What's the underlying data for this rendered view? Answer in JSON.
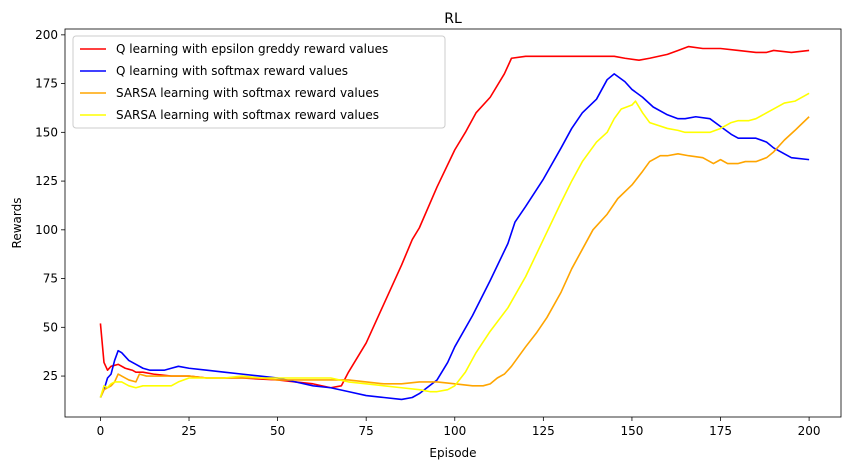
{
  "chart_data": {
    "type": "line",
    "title": "RL",
    "xlabel": "Episode",
    "ylabel": "Rewards",
    "xlim": [
      -10,
      209
    ],
    "ylim": [
      4,
      203
    ],
    "xticks": [
      0,
      25,
      50,
      75,
      100,
      125,
      150,
      175,
      200
    ],
    "yticks": [
      25,
      50,
      75,
      100,
      125,
      150,
      175,
      200
    ],
    "grid": false,
    "legend_position": "upper left",
    "series": [
      {
        "name": "Q learning with epsilon greddy reward values",
        "color": "#ff0000",
        "points": [
          [
            0,
            52
          ],
          [
            1,
            32
          ],
          [
            2,
            28
          ],
          [
            3,
            30
          ],
          [
            5,
            31
          ],
          [
            7,
            29
          ],
          [
            9,
            28
          ],
          [
            10,
            27
          ],
          [
            12,
            27
          ],
          [
            15,
            26
          ],
          [
            20,
            25
          ],
          [
            25,
            25
          ],
          [
            30,
            24
          ],
          [
            40,
            24
          ],
          [
            50,
            23
          ],
          [
            55,
            22
          ],
          [
            60,
            21
          ],
          [
            65,
            19
          ],
          [
            68,
            20
          ],
          [
            70,
            27
          ],
          [
            75,
            42
          ],
          [
            80,
            62
          ],
          [
            85,
            82
          ],
          [
            88,
            95
          ],
          [
            90,
            101
          ],
          [
            95,
            122
          ],
          [
            100,
            141
          ],
          [
            103,
            150
          ],
          [
            106,
            160
          ],
          [
            110,
            168
          ],
          [
            114,
            180
          ],
          [
            116,
            188
          ],
          [
            120,
            189
          ],
          [
            125,
            189
          ],
          [
            130,
            189
          ],
          [
            135,
            189
          ],
          [
            140,
            189
          ],
          [
            145,
            189
          ],
          [
            148,
            188
          ],
          [
            152,
            187
          ],
          [
            155,
            188
          ],
          [
            160,
            190
          ],
          [
            163,
            192
          ],
          [
            166,
            194
          ],
          [
            170,
            193
          ],
          [
            175,
            193
          ],
          [
            180,
            192
          ],
          [
            185,
            191
          ],
          [
            188,
            191
          ],
          [
            190,
            192
          ],
          [
            195,
            191
          ],
          [
            200,
            192
          ]
        ]
      },
      {
        "name": "Q learning with softmax reward values",
        "color": "#0000ff",
        "points": [
          [
            0,
            14
          ],
          [
            1,
            18
          ],
          [
            2,
            24
          ],
          [
            3,
            26
          ],
          [
            4,
            33
          ],
          [
            5,
            38
          ],
          [
            6,
            37
          ],
          [
            7,
            35
          ],
          [
            8,
            33
          ],
          [
            10,
            31
          ],
          [
            12,
            29
          ],
          [
            14,
            28
          ],
          [
            16,
            28
          ],
          [
            18,
            28
          ],
          [
            20,
            29
          ],
          [
            22,
            30
          ],
          [
            25,
            29
          ],
          [
            30,
            28
          ],
          [
            35,
            27
          ],
          [
            40,
            26
          ],
          [
            45,
            25
          ],
          [
            50,
            24
          ],
          [
            55,
            22
          ],
          [
            60,
            20
          ],
          [
            65,
            19
          ],
          [
            70,
            17
          ],
          [
            75,
            15
          ],
          [
            80,
            14
          ],
          [
            85,
            13
          ],
          [
            88,
            14
          ],
          [
            90,
            16
          ],
          [
            95,
            23
          ],
          [
            98,
            32
          ],
          [
            100,
            40
          ],
          [
            105,
            56
          ],
          [
            110,
            74
          ],
          [
            115,
            93
          ],
          [
            117,
            104
          ],
          [
            120,
            112
          ],
          [
            125,
            126
          ],
          [
            130,
            142
          ],
          [
            133,
            152
          ],
          [
            136,
            160
          ],
          [
            140,
            167
          ],
          [
            143,
            177
          ],
          [
            145,
            180
          ],
          [
            148,
            176
          ],
          [
            150,
            172
          ],
          [
            153,
            168
          ],
          [
            156,
            163
          ],
          [
            160,
            159
          ],
          [
            163,
            157
          ],
          [
            165,
            157
          ],
          [
            168,
            158
          ],
          [
            172,
            157
          ],
          [
            175,
            153
          ],
          [
            178,
            149
          ],
          [
            180,
            147
          ],
          [
            185,
            147
          ],
          [
            188,
            145
          ],
          [
            190,
            142
          ],
          [
            193,
            139
          ],
          [
            195,
            137
          ],
          [
            200,
            136
          ]
        ]
      },
      {
        "name": "SARSA learning with softmax reward values",
        "color": "#ffa500",
        "points": [
          [
            0,
            14
          ],
          [
            1,
            18
          ],
          [
            2,
            19
          ],
          [
            3,
            20
          ],
          [
            4,
            22
          ],
          [
            5,
            26
          ],
          [
            6,
            25
          ],
          [
            8,
            23
          ],
          [
            10,
            22
          ],
          [
            11,
            26
          ],
          [
            13,
            25
          ],
          [
            15,
            25
          ],
          [
            20,
            25
          ],
          [
            25,
            25
          ],
          [
            30,
            24
          ],
          [
            35,
            24
          ],
          [
            40,
            24
          ],
          [
            45,
            24
          ],
          [
            50,
            23
          ],
          [
            55,
            23
          ],
          [
            60,
            23
          ],
          [
            65,
            23
          ],
          [
            70,
            23
          ],
          [
            75,
            22
          ],
          [
            80,
            21
          ],
          [
            85,
            21
          ],
          [
            90,
            22
          ],
          [
            95,
            22
          ],
          [
            100,
            21
          ],
          [
            105,
            20
          ],
          [
            108,
            20
          ],
          [
            110,
            21
          ],
          [
            112,
            24
          ],
          [
            114,
            26
          ],
          [
            116,
            30
          ],
          [
            118,
            35
          ],
          [
            120,
            40
          ],
          [
            123,
            47
          ],
          [
            126,
            55
          ],
          [
            130,
            68
          ],
          [
            133,
            80
          ],
          [
            136,
            90
          ],
          [
            139,
            100
          ],
          [
            143,
            108
          ],
          [
            146,
            116
          ],
          [
            150,
            123
          ],
          [
            153,
            130
          ],
          [
            155,
            135
          ],
          [
            158,
            138
          ],
          [
            160,
            138
          ],
          [
            163,
            139
          ],
          [
            166,
            138
          ],
          [
            170,
            137
          ],
          [
            173,
            134
          ],
          [
            175,
            136
          ],
          [
            177,
            134
          ],
          [
            180,
            134
          ],
          [
            182,
            135
          ],
          [
            185,
            135
          ],
          [
            188,
            137
          ],
          [
            190,
            140
          ],
          [
            193,
            146
          ],
          [
            196,
            151
          ],
          [
            200,
            158
          ]
        ]
      },
      {
        "name": "SARSA learning with softmax reward values",
        "color": "#ffff00",
        "points": [
          [
            0,
            14
          ],
          [
            1,
            20
          ],
          [
            2,
            19
          ],
          [
            3,
            21
          ],
          [
            4,
            22
          ],
          [
            5,
            22
          ],
          [
            6,
            22
          ],
          [
            8,
            20
          ],
          [
            10,
            19
          ],
          [
            12,
            20
          ],
          [
            15,
            20
          ],
          [
            20,
            20
          ],
          [
            22,
            22
          ],
          [
            25,
            24
          ],
          [
            30,
            24
          ],
          [
            35,
            24
          ],
          [
            40,
            25
          ],
          [
            45,
            24
          ],
          [
            50,
            24
          ],
          [
            55,
            24
          ],
          [
            60,
            24
          ],
          [
            65,
            24
          ],
          [
            70,
            22
          ],
          [
            75,
            21
          ],
          [
            80,
            20
          ],
          [
            85,
            19
          ],
          [
            90,
            18
          ],
          [
            93,
            17
          ],
          [
            95,
            17
          ],
          [
            98,
            18
          ],
          [
            100,
            20
          ],
          [
            103,
            27
          ],
          [
            106,
            37
          ],
          [
            110,
            48
          ],
          [
            115,
            60
          ],
          [
            120,
            76
          ],
          [
            125,
            95
          ],
          [
            130,
            114
          ],
          [
            133,
            125
          ],
          [
            136,
            135
          ],
          [
            140,
            145
          ],
          [
            143,
            150
          ],
          [
            145,
            157
          ],
          [
            147,
            162
          ],
          [
            150,
            164
          ],
          [
            151,
            166
          ],
          [
            153,
            160
          ],
          [
            155,
            155
          ],
          [
            160,
            152
          ],
          [
            163,
            151
          ],
          [
            165,
            150
          ],
          [
            168,
            150
          ],
          [
            172,
            150
          ],
          [
            175,
            152
          ],
          [
            178,
            155
          ],
          [
            180,
            156
          ],
          [
            183,
            156
          ],
          [
            185,
            157
          ],
          [
            188,
            160
          ],
          [
            190,
            162
          ],
          [
            193,
            165
          ],
          [
            196,
            166
          ],
          [
            200,
            170
          ]
        ]
      }
    ]
  }
}
